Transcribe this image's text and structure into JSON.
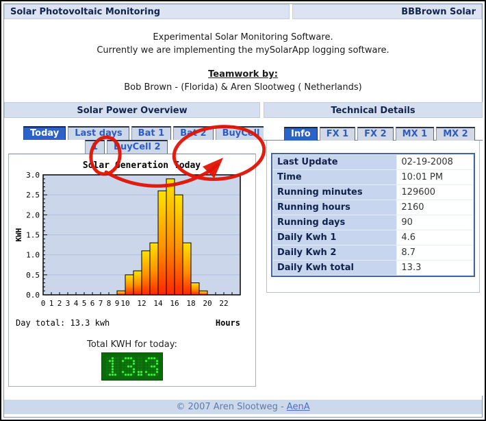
{
  "window": {
    "title_left": "Solar Photovoltaic Monitoring",
    "title_right": "BBBrown Solar"
  },
  "intro": {
    "line1": "Experimental Solar Monitoring Software.",
    "line2": "Currently we are implementing the mySolarApp logging software.",
    "teamwork_heading": "Teamwork by:",
    "team": "Bob Brown - (Florida) & Aren Slootweg ( Netherlands)"
  },
  "left_panel": {
    "header": "Solar Power Overview",
    "tabs_row1": [
      {
        "label": "Today",
        "active": true
      },
      {
        "label": "Last days",
        "active": false
      },
      {
        "label": "Bat 1",
        "active": false
      },
      {
        "label": "Bat 2",
        "active": false
      },
      {
        "label": "BuyCell",
        "active": false
      }
    ],
    "tabs_row2": [
      {
        "label": "1",
        "active": false
      },
      {
        "label": "BuyCell 2",
        "active": false
      }
    ],
    "total_label": "Total KWH for today:",
    "led_value": "13.3"
  },
  "right_panel": {
    "header": "Technical Details",
    "tabs": [
      {
        "label": "Info",
        "active": true
      },
      {
        "label": "FX 1",
        "active": false
      },
      {
        "label": "FX 2",
        "active": false
      },
      {
        "label": "MX 1",
        "active": false
      },
      {
        "label": "MX 2",
        "active": false
      }
    ],
    "table": {
      "rows": [
        [
          "Last Update",
          "02-19-2008"
        ],
        [
          "Time",
          "10:01 PM"
        ],
        [
          "Running minutes",
          "129600"
        ],
        [
          "Running hours",
          "2160"
        ],
        [
          "Running days",
          "90"
        ],
        [
          "Daily Kwh 1",
          "4.6"
        ],
        [
          "Daily Kwh 2",
          "8.7"
        ],
        [
          "Daily Kwh total",
          "13.3"
        ]
      ]
    }
  },
  "footer": {
    "text": "© 2007 Aren Slootweg - ",
    "link": "AenA"
  },
  "annotation": {
    "color": "#e01405",
    "meaning": "hand-drawn red circles around BuyCell tabs with arrow"
  },
  "chart_data": {
    "type": "bar",
    "title": "Solar Generation Today",
    "xlabel": "Hours",
    "ylabel": "KWH",
    "x_hours": [
      9,
      10,
      11,
      12,
      13,
      14,
      15,
      16,
      17,
      18,
      19
    ],
    "values": [
      0.1,
      0.5,
      0.6,
      1.1,
      1.3,
      2.6,
      2.9,
      2.5,
      1.3,
      0.3,
      0.1
    ],
    "xlim": [
      0,
      24
    ],
    "ylim": [
      0,
      3.0
    ],
    "x_tick_labels": [
      0,
      1,
      2,
      3,
      4,
      5,
      6,
      7,
      8,
      9,
      10,
      12,
      14,
      16,
      18,
      20,
      22
    ],
    "y_ticks": [
      0.0,
      0.5,
      1.0,
      1.5,
      2.0,
      2.5,
      3.0
    ],
    "day_total_label": "Day total: 13.3 kwh",
    "grid": "horizontal",
    "legend": "none",
    "plot_bg": "#ccd6eb",
    "grid_color": "#b3c0dc",
    "bar_gradient": [
      "#ffe300",
      "#ff9000",
      "#ff2600"
    ]
  }
}
